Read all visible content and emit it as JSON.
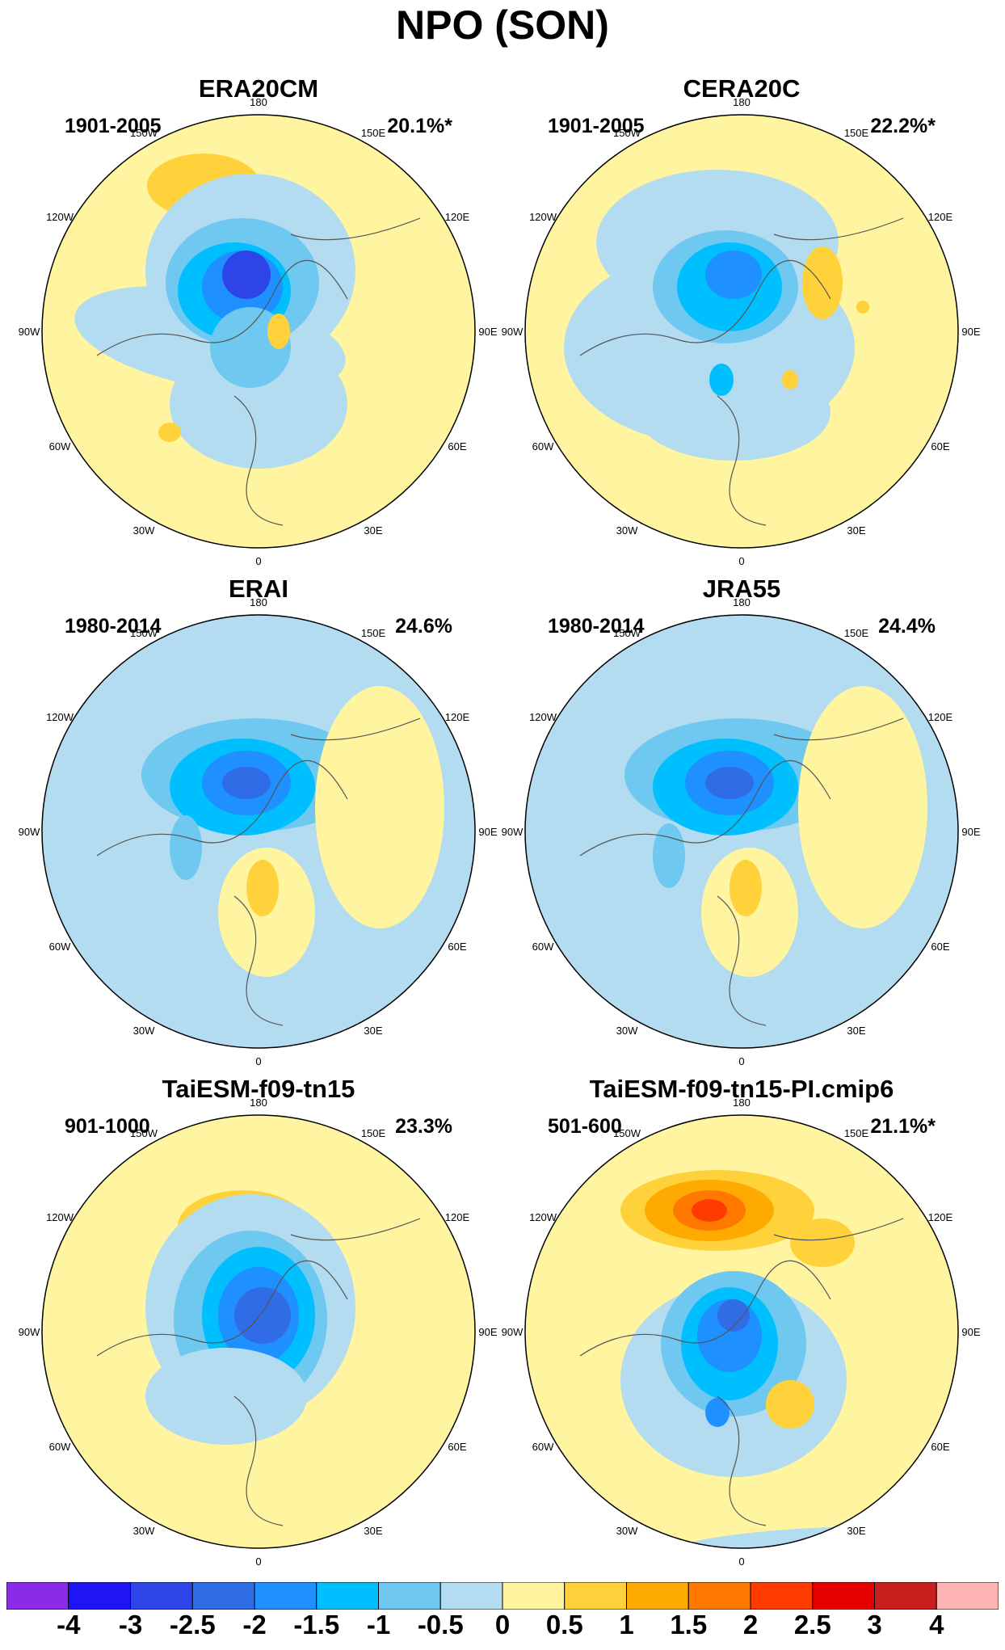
{
  "title": "NPO (SON)",
  "panels": [
    {
      "title": "ERA20CM",
      "period": "1901-2005",
      "variance": "20.1%*"
    },
    {
      "title": "CERA20C",
      "period": "1901-2005",
      "variance": "22.2%*"
    },
    {
      "title": "ERAI",
      "period": "1980-2014",
      "variance": "24.6%"
    },
    {
      "title": "JRA55",
      "period": "1980-2014",
      "variance": "24.4%"
    },
    {
      "title": "TaiESM-f09-tn15",
      "period": "901-1000",
      "variance": "23.3%"
    },
    {
      "title": "TaiESM-f09-tn15-PI.cmip6",
      "period": "501-600",
      "variance": "21.1%*"
    }
  ],
  "longitude_labels": [
    "180",
    "150E",
    "120E",
    "90E",
    "60E",
    "30E",
    "0",
    "30W",
    "60W",
    "90W",
    "120W",
    "150W"
  ],
  "colorbar": {
    "labels": [
      "-4",
      "-3",
      "-2.5",
      "-2",
      "-1.5",
      "-1",
      "-0.5",
      "0",
      "0.5",
      "1",
      "1.5",
      "2",
      "2.5",
      "3",
      "4"
    ],
    "colors": [
      "#8b2be8",
      "#1e14f5",
      "#2d45e8",
      "#2f6ce6",
      "#1e90ff",
      "#00bfff",
      "#6ec8f0",
      "#b4dcf0",
      "#fff5a0",
      "#ffd23c",
      "#ffaa00",
      "#ff7800",
      "#ff3c00",
      "#e60000",
      "#c81e1e",
      "#ffb4b4"
    ]
  }
}
